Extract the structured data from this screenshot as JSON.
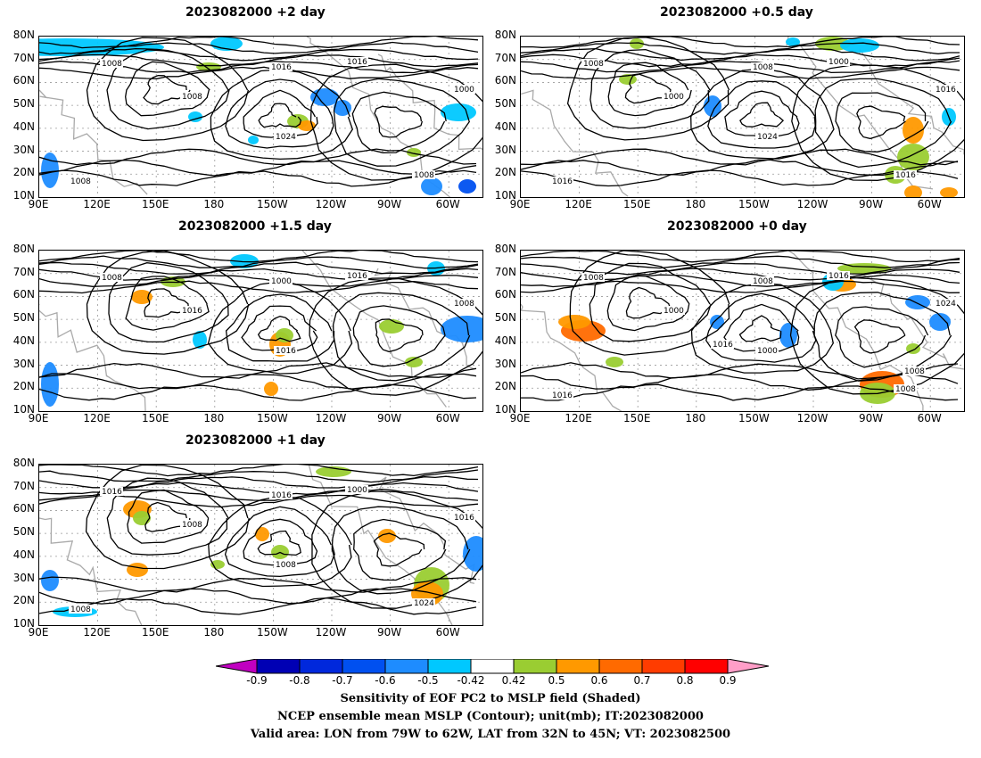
{
  "panels": [
    {
      "id": "p1",
      "title": "2023082000  +2 day"
    },
    {
      "id": "p2",
      "title": "2023082000  +0.5 day"
    },
    {
      "id": "p3",
      "title": "2023082000  +1.5 day"
    },
    {
      "id": "p4",
      "title": "2023082000  +0 day"
    },
    {
      "id": "p5",
      "title": "2023082000  +1 day"
    }
  ],
  "lat_labels": [
    "80N",
    "70N",
    "60N",
    "50N",
    "40N",
    "30N",
    "20N",
    "10N"
  ],
  "lon_labels": [
    "90E",
    "120E",
    "150E",
    "180",
    "150W",
    "120W",
    "90W",
    "60W"
  ],
  "colorbar": {
    "labels": [
      "-0.9",
      "-0.8",
      "-0.7",
      "-0.6",
      "-0.5",
      "-0.42",
      "0.42",
      "0.5",
      "0.6",
      "0.7",
      "0.8",
      "0.9"
    ],
    "colors": [
      "#c000c0",
      "#0000b4",
      "#0028dc",
      "#0050f0",
      "#1e8cff",
      "#00c8ff",
      "#ffffff",
      "#9acd32",
      "#ff9900",
      "#ff6a00",
      "#ff3c00",
      "#ff0000",
      "#ff9ec8"
    ]
  },
  "contour_labels": {
    "p1": [
      "1008",
      "1016",
      "1016",
      "1008",
      "1000",
      "1024",
      "1008",
      "1008"
    ],
    "p2": [
      "1008",
      "1008",
      "1000",
      "1000",
      "1016",
      "1024",
      "1016",
      "1016"
    ],
    "p3": [
      "1008",
      "1000",
      "1016",
      "1016",
      "1008",
      "1016"
    ],
    "p4": [
      "1008",
      "1008",
      "1016",
      "1000",
      "1024",
      "1000",
      "1008",
      "1016",
      "1016",
      "1008"
    ],
    "p5": [
      "1016",
      "1016",
      "1000",
      "1008",
      "1016",
      "1008",
      "1024",
      "1008"
    ]
  },
  "caption": {
    "line1": "Sensitivity of EOF PC2 to MSLP field (Shaded)",
    "line2": "NCEP ensemble mean MSLP (Contour); unit(mb); IT:2023082000",
    "line3": "Valid area: LON from 79W to 62W, LAT from 32N to 45N; VT: 2023082500"
  }
}
